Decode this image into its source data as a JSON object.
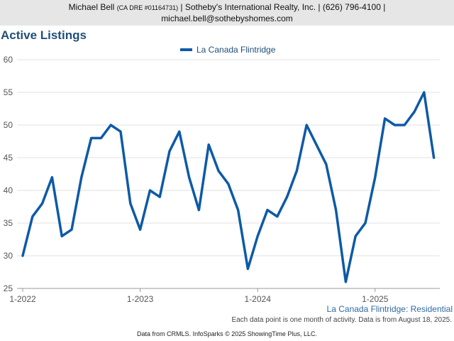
{
  "header": {
    "name": "Michael Bell",
    "dre": "(CA DRE #01164731)",
    "rest": " | Sotheby's International Realty, Inc. | (626) 796-4100 |",
    "email": "michael.bell@sothebyshomes.com"
  },
  "colors": {
    "line": "#0d5aa7",
    "title": "#1f4e79",
    "grid": "#e0e0e0"
  },
  "footer": {
    "subtitle": "La Canada Flintridge: Residential",
    "note": "Each data point is one month of activity. Data is from August 18, 2025.",
    "source": "Data from CRMLS. InfoSparks © 2025 ShowingTime Plus, LLC."
  },
  "chart_data": {
    "type": "line",
    "title": "Active Listings",
    "legend_position": "top-center",
    "grid": true,
    "x": [
      "2022-01",
      "2022-02",
      "2022-03",
      "2022-04",
      "2022-05",
      "2022-06",
      "2022-07",
      "2022-08",
      "2022-09",
      "2022-10",
      "2022-11",
      "2022-12",
      "2023-01",
      "2023-02",
      "2023-03",
      "2023-04",
      "2023-05",
      "2023-06",
      "2023-07",
      "2023-08",
      "2023-09",
      "2023-10",
      "2023-11",
      "2023-12",
      "2024-01",
      "2024-02",
      "2024-03",
      "2024-04",
      "2024-05",
      "2024-06",
      "2024-07",
      "2024-08",
      "2024-09",
      "2024-10",
      "2024-11",
      "2024-12",
      "2025-01",
      "2025-02",
      "2025-03",
      "2025-04",
      "2025-05",
      "2025-06",
      "2025-07"
    ],
    "x_tick_labels": [
      "1-2022",
      "1-2023",
      "1-2024",
      "1-2025"
    ],
    "ylim": [
      25,
      60
    ],
    "y_ticks": [
      25,
      30,
      35,
      40,
      45,
      50,
      55,
      60
    ],
    "series": [
      {
        "name": "La Canada Flintridge",
        "values": [
          30,
          36,
          38,
          42,
          33,
          34,
          42,
          48,
          48,
          50,
          49,
          38,
          34,
          40,
          39,
          46,
          49,
          42,
          37,
          47,
          43,
          41,
          37,
          28,
          33,
          37,
          36,
          39,
          43,
          50,
          47,
          44,
          37,
          26,
          33,
          35,
          42,
          51,
          50,
          50,
          52,
          55,
          45
        ]
      }
    ]
  }
}
